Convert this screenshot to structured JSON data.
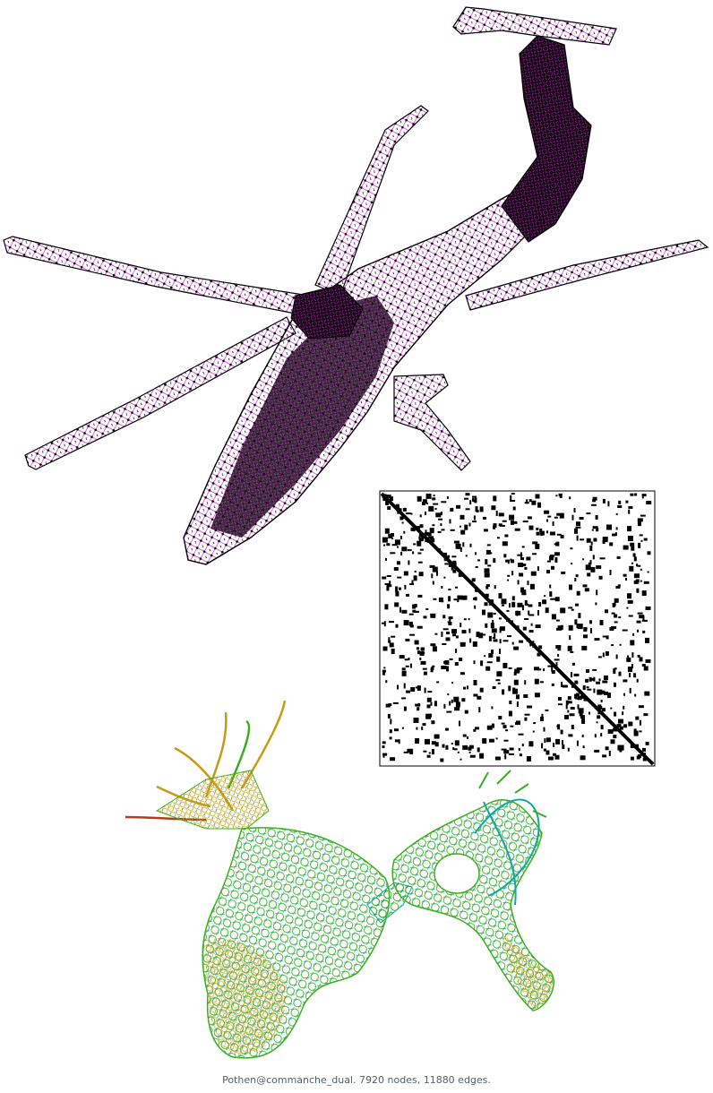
{
  "caption": "Pothen@commanche_dual. 7920 nodes, 11880 edges.",
  "colors": {
    "mesh_edges": "#d02ad0",
    "mesh_nodes": "#000000",
    "matrix_fill": "#000000",
    "layout_edges_low": "#12a8a0",
    "layout_edges_mid": "#3cae1e",
    "layout_edges_high": "#c89a14",
    "layout_edges_hot": "#b0401a",
    "caption_text": "#55606c"
  }
}
